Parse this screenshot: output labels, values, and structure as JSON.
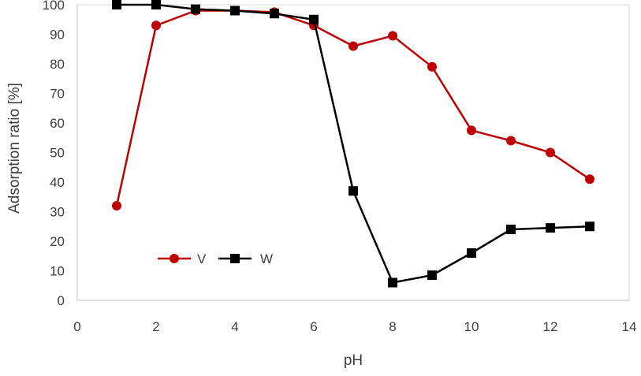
{
  "chart_data": {
    "type": "line",
    "title": "",
    "xlabel": "pH",
    "ylabel": "Adsorption ratio [%]",
    "xlim": [
      0,
      14
    ],
    "ylim": [
      0,
      100
    ],
    "xticks": [
      0,
      2,
      4,
      6,
      8,
      10,
      12,
      14
    ],
    "yticks": [
      0,
      10,
      20,
      30,
      40,
      50,
      60,
      70,
      80,
      90,
      100
    ],
    "grid": false,
    "legend_position": "bottom-left",
    "series": [
      {
        "name": "V",
        "color": "#c00000",
        "marker": "circle",
        "x": [
          1,
          2,
          3,
          4,
          5,
          6,
          7,
          8,
          9,
          10,
          11,
          12,
          13
        ],
        "y": [
          32,
          93,
          98,
          98,
          97.5,
          93,
          86,
          89.5,
          79,
          57.5,
          54,
          50,
          41
        ]
      },
      {
        "name": "W",
        "color": "#000000",
        "marker": "square",
        "x": [
          1,
          2,
          3,
          4,
          5,
          6,
          7,
          8,
          9,
          10,
          11,
          12,
          13
        ],
        "y": [
          100,
          100,
          98.5,
          98,
          97,
          95,
          37,
          6,
          8.5,
          16,
          24,
          24.5,
          25
        ]
      }
    ]
  }
}
